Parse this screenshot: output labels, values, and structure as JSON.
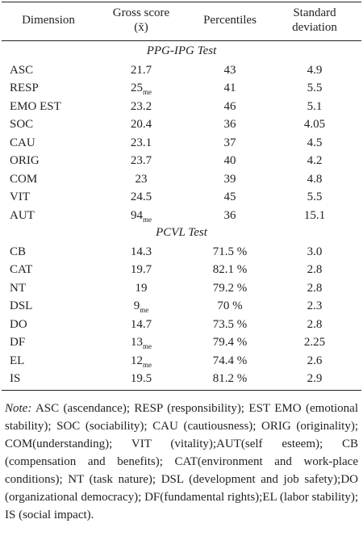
{
  "table": {
    "header": [
      "Dimension",
      "Gross score (x̄)",
      "Percentiles",
      "Standard deviation"
    ],
    "sections": [
      {
        "title": "PPG-IPG Test",
        "rows": [
          [
            "ASC",
            "21.7",
            "43",
            "4.9"
          ],
          [
            "RESP",
            {
              "value": "25",
              "sub": "me"
            },
            "41",
            "5.5"
          ],
          [
            "EMO EST",
            "23.2",
            "46",
            "5.1"
          ],
          [
            "SOC",
            "20.4",
            "36",
            "4.05"
          ],
          [
            "CAU",
            "23.1",
            "37",
            "4.5"
          ],
          [
            "ORIG",
            "23.7",
            "40",
            "4.2"
          ],
          [
            "COM",
            "23",
            "39",
            "4.8"
          ],
          [
            "VIT",
            "24.5",
            "45",
            "5.5"
          ],
          [
            "AUT",
            {
              "value": "94",
              "sub": "me"
            },
            "36",
            "15.1"
          ]
        ]
      },
      {
        "title": "PCVL Test",
        "rows": [
          [
            "CB",
            "14.3",
            "71.5 %",
            "3.0"
          ],
          [
            "CAT",
            "19.7",
            "82.1 %",
            "2.8"
          ],
          [
            "NT",
            "19",
            "79.2 %",
            "2.8"
          ],
          [
            "DSL",
            {
              "value": "9",
              "sub": "me"
            },
            "70 %",
            "2.3"
          ],
          [
            "DO",
            "14.7",
            "73.5 %",
            "2.8"
          ],
          [
            "DF",
            {
              "value": "13",
              "sub": "me"
            },
            "79.4 %",
            "2.25"
          ],
          [
            "EL",
            {
              "value": "12",
              "sub": "me"
            },
            "74.4 %",
            "2.6"
          ],
          [
            "IS",
            "19.5",
            "81.2 %",
            "2.9"
          ]
        ]
      }
    ]
  },
  "note": {
    "label": "Note:",
    "text": "ASC (ascendance); RESP (responsibility); EST EMO (emotional stability); SOC (sociability); CAU (cautiousness); ORIG (originality); COM(understanding); VIT (vitality);AUT(self esteem); CB (compensation and benefits); CAT(environment and work-place conditions); NT (task nature); DSL (development and job safety);DO (organizational democracy); DF(fundamental rights);EL (labor stability); IS (social impact)."
  }
}
